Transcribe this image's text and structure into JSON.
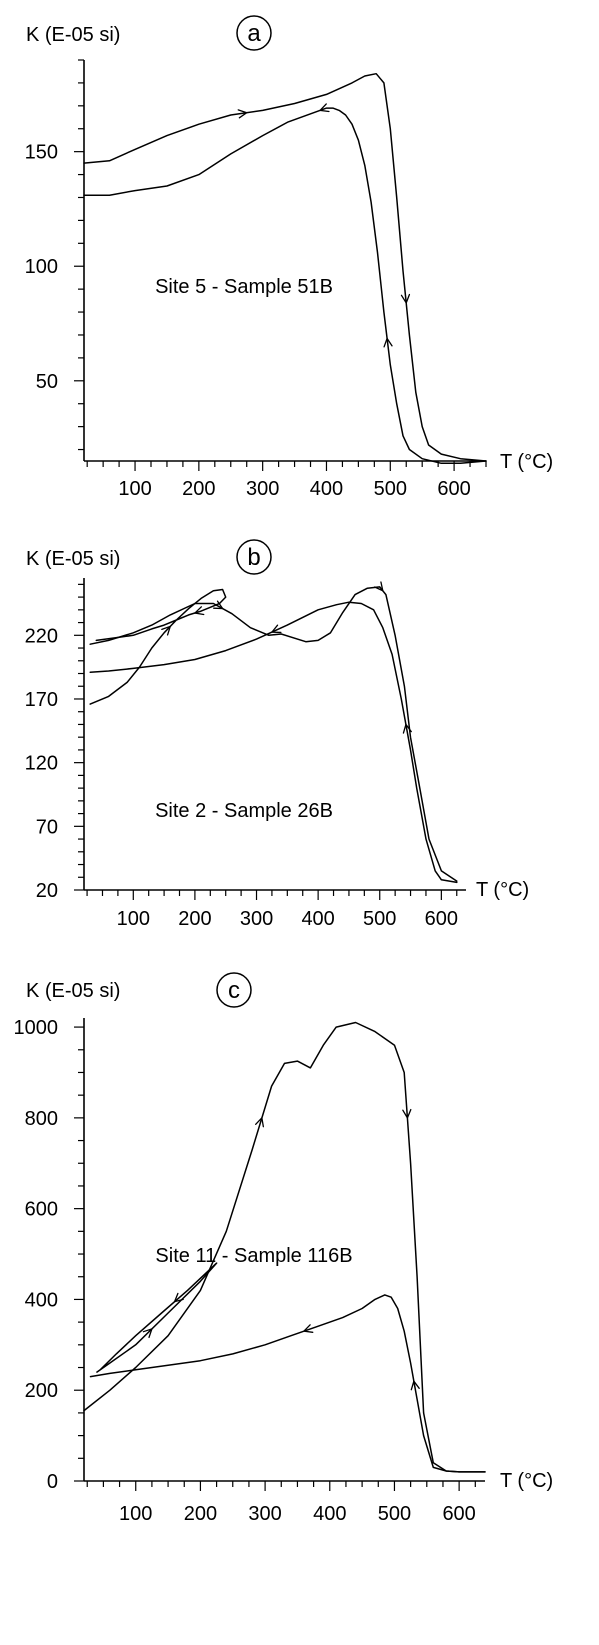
{
  "chart_data": [
    {
      "type": "line",
      "panel_letter": "a",
      "ylabel": "K (E-05 si)",
      "xlabel": "T (°C)",
      "annotation": "Site 5 - Sample 51B",
      "xlim": [
        20,
        650
      ],
      "ylim": [
        15,
        190
      ],
      "xticks": [
        100,
        200,
        300,
        400,
        500,
        600
      ],
      "yticks": [
        50,
        100,
        150
      ],
      "series": [
        {
          "direction": "heating",
          "x": [
            20,
            60,
            100,
            150,
            200,
            250,
            300,
            350,
            400,
            440,
            460,
            478,
            490,
            500,
            510,
            520,
            530,
            540,
            550,
            560,
            580,
            610,
            650
          ],
          "y": [
            145,
            146,
            151,
            157,
            162,
            166,
            168,
            171,
            175,
            180,
            183,
            184,
            180,
            160,
            130,
            98,
            70,
            45,
            30,
            22,
            18,
            16,
            15
          ]
        },
        {
          "direction": "cooling",
          "x": [
            650,
            610,
            580,
            550,
            530,
            520,
            510,
            500,
            490,
            480,
            470,
            460,
            450,
            440,
            430,
            420,
            410,
            400,
            380,
            340,
            300,
            250,
            200,
            150,
            100,
            60,
            20
          ],
          "y": [
            15,
            14,
            14,
            16,
            20,
            26,
            40,
            57,
            80,
            106,
            128,
            144,
            155,
            162,
            166,
            168,
            169,
            169,
            167,
            163,
            157,
            149,
            140,
            135,
            133,
            131,
            131
          ]
        }
      ]
    },
    {
      "type": "line",
      "panel_letter": "b",
      "ylabel": "K (E-05 si)",
      "xlabel": "T (°C)",
      "annotation": "Site 2 - Sample 26B",
      "xlim": [
        20,
        640
      ],
      "ylim": [
        20,
        265
      ],
      "xticks": [
        100,
        200,
        300,
        400,
        500,
        600
      ],
      "yticks": [
        20,
        70,
        120,
        170,
        220
      ],
      "series": [
        {
          "direction": "heating",
          "x": [
            30,
            60,
            100,
            130,
            160,
            200,
            230,
            260,
            290,
            320,
            340,
            380,
            400,
            420,
            440,
            460,
            480,
            500,
            510,
            525,
            540,
            550,
            565,
            580,
            600,
            625
          ],
          "y": [
            213,
            216,
            222,
            228,
            236,
            245,
            245,
            237,
            226,
            220,
            221,
            215,
            216,
            222,
            238,
            252,
            257,
            258,
            252,
            220,
            180,
            140,
            100,
            60,
            35,
            27
          ]
        },
        {
          "direction": "cooling",
          "x": [
            625,
            600,
            590,
            575,
            560,
            550,
            535,
            520,
            505,
            490,
            470,
            450,
            430,
            400,
            350,
            300,
            250,
            200,
            150,
            100,
            60,
            30
          ],
          "y": [
            26,
            28,
            35,
            60,
            100,
            130,
            170,
            205,
            226,
            240,
            245,
            246,
            244,
            240,
            228,
            217,
            208,
            201,
            197,
            194,
            192,
            191
          ]
        },
        {
          "direction": "heating (first run)",
          "x": [
            30,
            60,
            90,
            110,
            130,
            150,
            170,
            190,
            210,
            230,
            245,
            250,
            240,
            225,
            210,
            190,
            170,
            150,
            130,
            100,
            70,
            40
          ],
          "y": [
            166,
            172,
            183,
            195,
            210,
            222,
            232,
            241,
            249,
            255,
            256,
            250,
            245,
            242,
            239,
            236,
            232,
            228,
            225,
            220,
            218,
            216
          ]
        }
      ]
    },
    {
      "type": "line",
      "panel_letter": "c",
      "ylabel": "K (E-05 si)",
      "xlabel": "T (°C)",
      "annotation": "Site 11 - Sample 116B",
      "xlim": [
        20,
        640
      ],
      "ylim": [
        0,
        1020
      ],
      "xticks": [
        100,
        200,
        300,
        400,
        500,
        600
      ],
      "yticks": [
        0,
        200,
        400,
        600,
        800,
        1000
      ],
      "series": [
        {
          "direction": "heating",
          "x": [
            20,
            60,
            100,
            150,
            200,
            240,
            280,
            310,
            330,
            350,
            370,
            390,
            410,
            440,
            470,
            500,
            515,
            525,
            535,
            545,
            560,
            580,
            600,
            620,
            640
          ],
          "y": [
            155,
            200,
            250,
            320,
            420,
            550,
            730,
            870,
            920,
            925,
            910,
            960,
            1000,
            1010,
            990,
            960,
            900,
            700,
            450,
            150,
            40,
            22,
            20,
            20,
            20
          ]
        },
        {
          "direction": "cooling",
          "x": [
            640,
            620,
            600,
            580,
            560,
            545,
            535,
            525,
            515,
            505,
            495,
            485,
            470,
            450,
            420,
            380,
            340,
            300,
            250,
            200,
            150,
            100,
            60,
            30
          ],
          "y": [
            20,
            20,
            20,
            22,
            30,
            100,
            180,
            260,
            330,
            380,
            405,
            410,
            400,
            380,
            360,
            340,
            320,
            300,
            280,
            265,
            255,
            245,
            237,
            230
          ]
        },
        {
          "direction": "heating (first run)",
          "x": [
            40,
            60,
            100,
            150,
            200,
            225,
            210,
            180,
            140,
            100,
            70,
            45
          ],
          "y": [
            240,
            260,
            300,
            370,
            440,
            480,
            460,
            420,
            370,
            320,
            280,
            245
          ]
        }
      ]
    }
  ]
}
